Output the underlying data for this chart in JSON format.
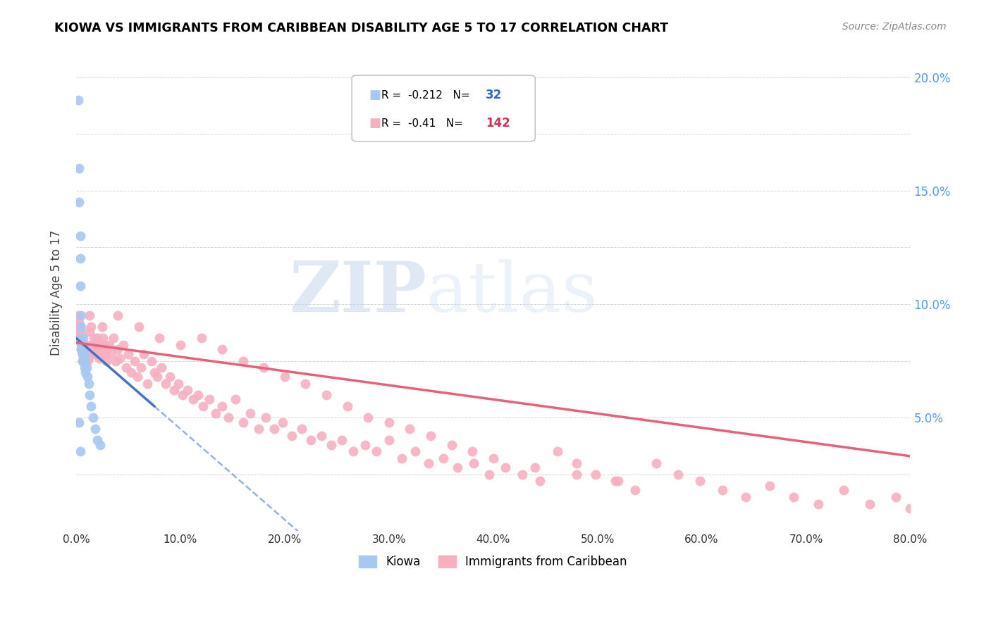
{
  "title": "KIOWA VS IMMIGRANTS FROM CARIBBEAN DISABILITY AGE 5 TO 17 CORRELATION CHART",
  "source": "Source: ZipAtlas.com",
  "ylabel": "Disability Age 5 to 17",
  "legend_kiowa": "Kiowa",
  "legend_carib": "Immigrants from Caribbean",
  "r_kiowa": -0.212,
  "n_kiowa": 32,
  "r_carib": -0.41,
  "n_carib": 142,
  "kiowa_color": "#a8c8f0",
  "carib_color": "#f5b0c0",
  "kiowa_line_color": "#4472c4",
  "carib_line_color": "#e8607a",
  "xlim_pct": [
    0.0,
    0.8
  ],
  "ylim_pct": [
    0.0,
    0.21
  ],
  "xtick_vals": [
    0.0,
    0.1,
    0.2,
    0.3,
    0.4,
    0.5,
    0.6,
    0.7,
    0.8
  ],
  "ytick_right_vals": [
    0.05,
    0.1,
    0.15,
    0.2
  ],
  "watermark_zip": "ZIP",
  "watermark_atlas": "atlas",
  "kiowa_x": [
    0.002,
    0.003,
    0.003,
    0.004,
    0.004,
    0.004,
    0.005,
    0.005,
    0.005,
    0.005,
    0.005,
    0.006,
    0.006,
    0.006,
    0.007,
    0.007,
    0.007,
    0.008,
    0.008,
    0.009,
    0.009,
    0.01,
    0.011,
    0.012,
    0.013,
    0.014,
    0.016,
    0.018,
    0.02,
    0.023,
    0.003,
    0.004
  ],
  "kiowa_y": [
    0.19,
    0.16,
    0.145,
    0.13,
    0.12,
    0.108,
    0.095,
    0.09,
    0.085,
    0.083,
    0.08,
    0.082,
    0.078,
    0.075,
    0.085,
    0.08,
    0.075,
    0.078,
    0.072,
    0.076,
    0.07,
    0.072,
    0.068,
    0.065,
    0.06,
    0.055,
    0.05,
    0.045,
    0.04,
    0.038,
    0.048,
    0.035
  ],
  "carib_x": [
    0.002,
    0.003,
    0.003,
    0.004,
    0.004,
    0.004,
    0.005,
    0.005,
    0.005,
    0.006,
    0.006,
    0.006,
    0.007,
    0.007,
    0.008,
    0.008,
    0.009,
    0.009,
    0.01,
    0.01,
    0.011,
    0.011,
    0.012,
    0.012,
    0.013,
    0.013,
    0.014,
    0.015,
    0.015,
    0.016,
    0.017,
    0.018,
    0.019,
    0.02,
    0.021,
    0.022,
    0.023,
    0.024,
    0.025,
    0.026,
    0.027,
    0.028,
    0.029,
    0.03,
    0.032,
    0.034,
    0.036,
    0.038,
    0.04,
    0.042,
    0.045,
    0.048,
    0.05,
    0.053,
    0.056,
    0.059,
    0.062,
    0.065,
    0.068,
    0.072,
    0.075,
    0.078,
    0.082,
    0.086,
    0.09,
    0.094,
    0.098,
    0.102,
    0.107,
    0.112,
    0.117,
    0.122,
    0.128,
    0.134,
    0.14,
    0.146,
    0.153,
    0.16,
    0.167,
    0.175,
    0.182,
    0.19,
    0.198,
    0.207,
    0.216,
    0.225,
    0.235,
    0.245,
    0.255,
    0.266,
    0.277,
    0.288,
    0.3,
    0.312,
    0.325,
    0.338,
    0.352,
    0.366,
    0.381,
    0.396,
    0.412,
    0.428,
    0.445,
    0.462,
    0.48,
    0.498,
    0.517,
    0.536,
    0.556,
    0.577,
    0.598,
    0.62,
    0.642,
    0.665,
    0.688,
    0.712,
    0.736,
    0.761,
    0.786,
    0.8,
    0.04,
    0.06,
    0.08,
    0.1,
    0.12,
    0.14,
    0.16,
    0.18,
    0.2,
    0.22,
    0.24,
    0.26,
    0.28,
    0.3,
    0.32,
    0.34,
    0.36,
    0.38,
    0.4,
    0.44,
    0.48,
    0.52
  ],
  "carib_y": [
    0.095,
    0.092,
    0.09,
    0.088,
    0.086,
    0.084,
    0.083,
    0.082,
    0.08,
    0.082,
    0.079,
    0.078,
    0.08,
    0.076,
    0.082,
    0.078,
    0.08,
    0.075,
    0.082,
    0.078,
    0.079,
    0.075,
    0.08,
    0.076,
    0.095,
    0.088,
    0.09,
    0.082,
    0.078,
    0.08,
    0.085,
    0.082,
    0.078,
    0.085,
    0.08,
    0.076,
    0.082,
    0.078,
    0.09,
    0.085,
    0.082,
    0.078,
    0.075,
    0.08,
    0.082,
    0.078,
    0.085,
    0.075,
    0.08,
    0.076,
    0.082,
    0.072,
    0.078,
    0.07,
    0.075,
    0.068,
    0.072,
    0.078,
    0.065,
    0.075,
    0.07,
    0.068,
    0.072,
    0.065,
    0.068,
    0.062,
    0.065,
    0.06,
    0.062,
    0.058,
    0.06,
    0.055,
    0.058,
    0.052,
    0.055,
    0.05,
    0.058,
    0.048,
    0.052,
    0.045,
    0.05,
    0.045,
    0.048,
    0.042,
    0.045,
    0.04,
    0.042,
    0.038,
    0.04,
    0.035,
    0.038,
    0.035,
    0.04,
    0.032,
    0.035,
    0.03,
    0.032,
    0.028,
    0.03,
    0.025,
    0.028,
    0.025,
    0.022,
    0.035,
    0.03,
    0.025,
    0.022,
    0.018,
    0.03,
    0.025,
    0.022,
    0.018,
    0.015,
    0.02,
    0.015,
    0.012,
    0.018,
    0.012,
    0.015,
    0.01,
    0.095,
    0.09,
    0.085,
    0.082,
    0.085,
    0.08,
    0.075,
    0.072,
    0.068,
    0.065,
    0.06,
    0.055,
    0.05,
    0.048,
    0.045,
    0.042,
    0.038,
    0.035,
    0.032,
    0.028,
    0.025,
    0.022
  ]
}
